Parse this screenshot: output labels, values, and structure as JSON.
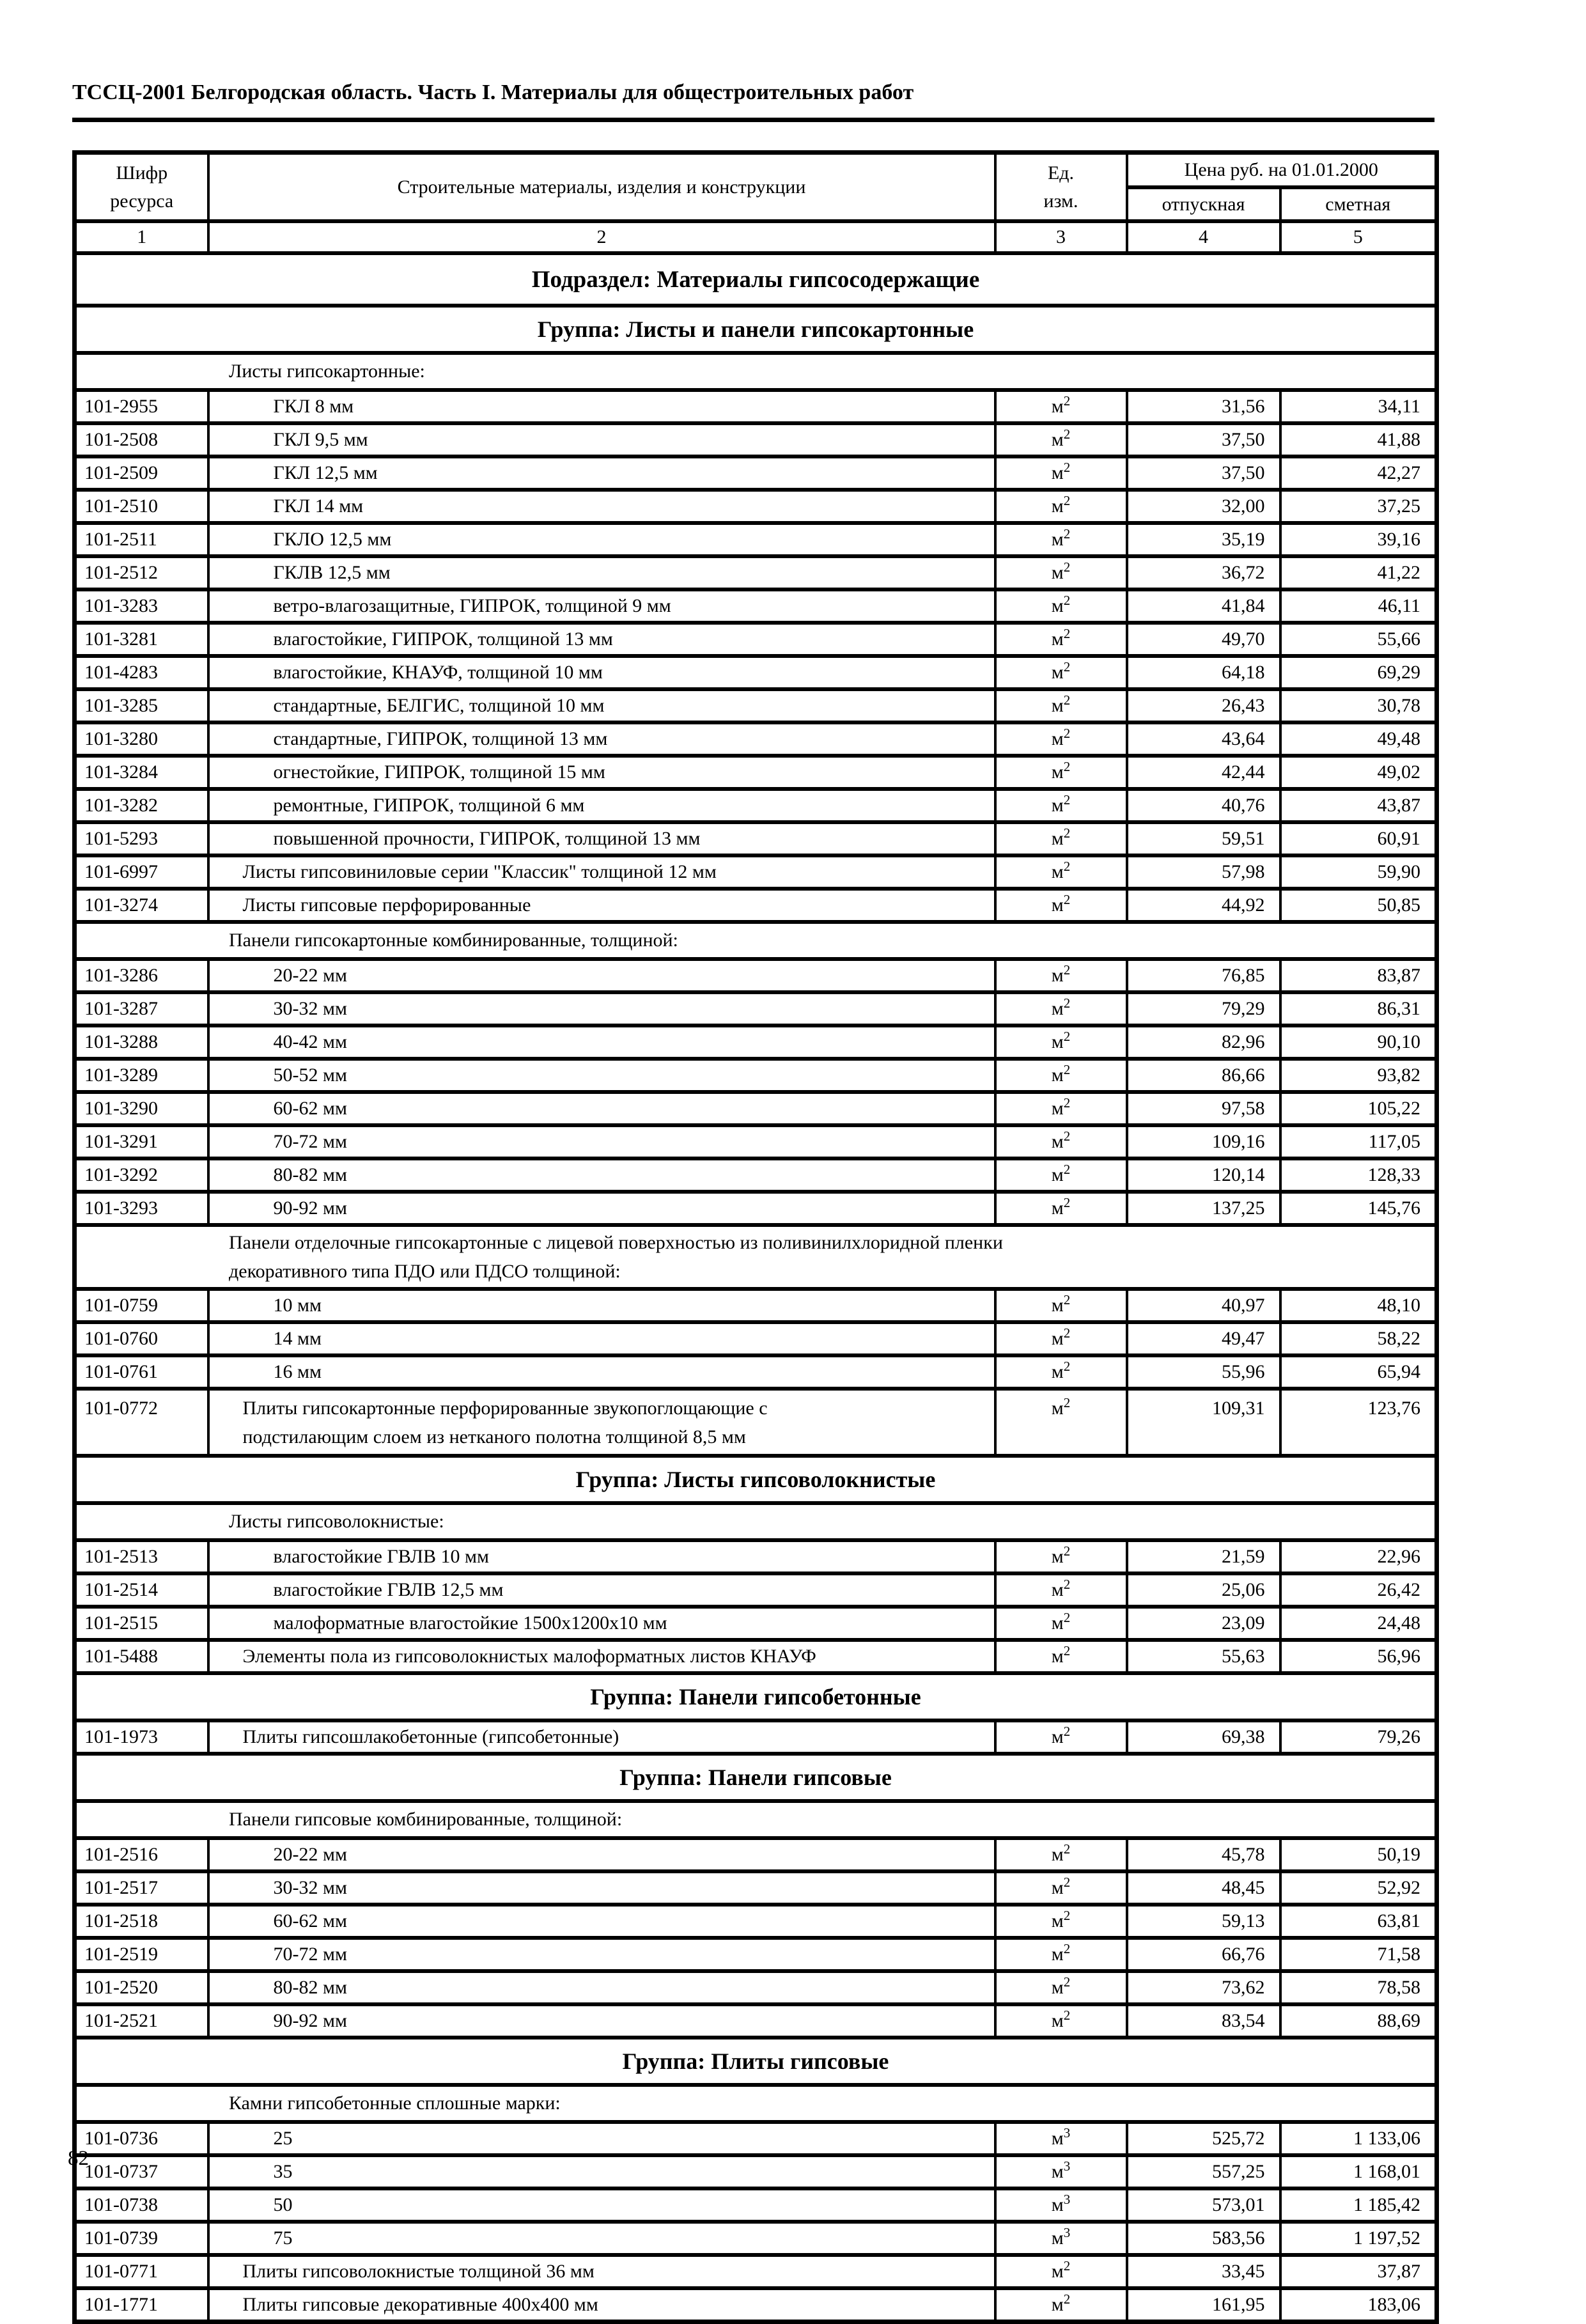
{
  "page": {
    "title": "ТССЦ-2001 Белгородская область. Часть I. Материалы для общестроительных работ",
    "page_number": "82"
  },
  "table": {
    "header": {
      "code": "Шифр\nресурса",
      "materials": "Строительные материалы, изделия и конструкции",
      "unit": "Ед.\nизм.",
      "price_group": "Цена руб. на 01.01.2000",
      "wholesale": "отпускная",
      "estimate": "сметная",
      "numbers": [
        "1",
        "2",
        "3",
        "4",
        "5"
      ]
    },
    "rows": [
      {
        "type": "section",
        "text": "Подраздел: Материалы гипсосодержащие"
      },
      {
        "type": "group",
        "text": "Группа: Листы и панели гипсокартонные"
      },
      {
        "type": "subheader",
        "text": "Листы гипсокартонные:"
      },
      {
        "type": "data",
        "code": "101-2955",
        "name": "ГКЛ 8 мм",
        "indent": 2,
        "unit": "м²",
        "wholesale": "31,56",
        "estimate": "34,11"
      },
      {
        "type": "data",
        "code": "101-2508",
        "name": "ГКЛ 9,5 мм",
        "indent": 2,
        "unit": "м²",
        "wholesale": "37,50",
        "estimate": "41,88"
      },
      {
        "type": "data",
        "code": "101-2509",
        "name": "ГКЛ 12,5 мм",
        "indent": 2,
        "unit": "м²",
        "wholesale": "37,50",
        "estimate": "42,27"
      },
      {
        "type": "data",
        "code": "101-2510",
        "name": "ГКЛ 14 мм",
        "indent": 2,
        "unit": "м²",
        "wholesale": "32,00",
        "estimate": "37,25"
      },
      {
        "type": "data",
        "code": "101-2511",
        "name": "ГКЛО 12,5 мм",
        "indent": 2,
        "unit": "м²",
        "wholesale": "35,19",
        "estimate": "39,16"
      },
      {
        "type": "data",
        "code": "101-2512",
        "name": "ГКЛВ 12,5 мм",
        "indent": 2,
        "unit": "м²",
        "wholesale": "36,72",
        "estimate": "41,22"
      },
      {
        "type": "data",
        "code": "101-3283",
        "name": "ветро-влагозащитные, ГИПРОК, толщиной 9 мм",
        "indent": 2,
        "unit": "м²",
        "wholesale": "41,84",
        "estimate": "46,11"
      },
      {
        "type": "data",
        "code": "101-3281",
        "name": "влагостойкие, ГИПРОК, толщиной 13 мм",
        "indent": 2,
        "unit": "м²",
        "wholesale": "49,70",
        "estimate": "55,66"
      },
      {
        "type": "data",
        "code": "101-4283",
        "name": "влагостойкие, КНАУФ, толщиной 10 мм",
        "indent": 2,
        "unit": "м²",
        "wholesale": "64,18",
        "estimate": "69,29"
      },
      {
        "type": "data",
        "code": "101-3285",
        "name": "стандартные, БЕЛГИС, толщиной 10 мм",
        "indent": 2,
        "unit": "м²",
        "wholesale": "26,43",
        "estimate": "30,78"
      },
      {
        "type": "data",
        "code": "101-3280",
        "name": "стандартные, ГИПРОК, толщиной 13 мм",
        "indent": 2,
        "unit": "м²",
        "wholesale": "43,64",
        "estimate": "49,48"
      },
      {
        "type": "data",
        "code": "101-3284",
        "name": "огнестойкие, ГИПРОК, толщиной 15 мм",
        "indent": 2,
        "unit": "м²",
        "wholesale": "42,44",
        "estimate": "49,02"
      },
      {
        "type": "data",
        "code": "101-3282",
        "name": "ремонтные, ГИПРОК, толщиной 6 мм",
        "indent": 2,
        "unit": "м²",
        "wholesale": "40,76",
        "estimate": "43,87"
      },
      {
        "type": "data",
        "code": "101-5293",
        "name": "повышенной прочности, ГИПРОК, толщиной 13 мм",
        "indent": 2,
        "unit": "м²",
        "wholesale": "59,51",
        "estimate": "60,91"
      },
      {
        "type": "data",
        "code": "101-6997",
        "name": "Листы гипсовиниловые серии \"Классик\" толщиной 12 мм",
        "indent": 1,
        "unit": "м²",
        "wholesale": "57,98",
        "estimate": "59,90"
      },
      {
        "type": "data",
        "code": "101-3274",
        "name": "Листы гипсовые перфорированные",
        "indent": 1,
        "unit": "м²",
        "wholesale": "44,92",
        "estimate": "50,85"
      },
      {
        "type": "subheader",
        "text": "Панели гипсокартонные комбинированные, толщиной:"
      },
      {
        "type": "data",
        "code": "101-3286",
        "name": "20-22 мм",
        "indent": 2,
        "unit": "м²",
        "wholesale": "76,85",
        "estimate": "83,87"
      },
      {
        "type": "data",
        "code": "101-3287",
        "name": "30-32 мм",
        "indent": 2,
        "unit": "м²",
        "wholesale": "79,29",
        "estimate": "86,31"
      },
      {
        "type": "data",
        "code": "101-3288",
        "name": "40-42 мм",
        "indent": 2,
        "unit": "м²",
        "wholesale": "82,96",
        "estimate": "90,10"
      },
      {
        "type": "data",
        "code": "101-3289",
        "name": "50-52 мм",
        "indent": 2,
        "unit": "м²",
        "wholesale": "86,66",
        "estimate": "93,82"
      },
      {
        "type": "data",
        "code": "101-3290",
        "name": "60-62 мм",
        "indent": 2,
        "unit": "м²",
        "wholesale": "97,58",
        "estimate": "105,22"
      },
      {
        "type": "data",
        "code": "101-3291",
        "name": "70-72 мм",
        "indent": 2,
        "unit": "м²",
        "wholesale": "109,16",
        "estimate": "117,05"
      },
      {
        "type": "data",
        "code": "101-3292",
        "name": "80-82 мм",
        "indent": 2,
        "unit": "м²",
        "wholesale": "120,14",
        "estimate": "128,33"
      },
      {
        "type": "data",
        "code": "101-3293",
        "name": "90-92 мм",
        "indent": 2,
        "unit": "м²",
        "wholesale": "137,25",
        "estimate": "145,76"
      },
      {
        "type": "subheader",
        "lines": 2,
        "text": "Панели отделочные гипсокартонные с лицевой поверхностью из поливинилхлоридной пленки\nдекоративного типа ПДО или ПДСО толщиной:"
      },
      {
        "type": "data",
        "code": "101-0759",
        "name": "10 мм",
        "indent": 2,
        "unit": "м²",
        "wholesale": "40,97",
        "estimate": "48,10"
      },
      {
        "type": "data",
        "code": "101-0760",
        "name": "14 мм",
        "indent": 2,
        "unit": "м²",
        "wholesale": "49,47",
        "estimate": "58,22"
      },
      {
        "type": "data",
        "code": "101-0761",
        "name": "16 мм",
        "indent": 2,
        "unit": "м²",
        "wholesale": "55,96",
        "estimate": "65,94"
      },
      {
        "type": "data",
        "lines": 2,
        "code": "101-0772",
        "name": "Плиты гипсокартонные перфорированные звукопоглощающие с\nподстилающим слоем из нетканого полотна толщиной 8,5 мм",
        "indent": 1,
        "unit": "м²",
        "wholesale": "109,31",
        "estimate": "123,76"
      },
      {
        "type": "group",
        "text": "Группа: Листы гипсоволокнистые"
      },
      {
        "type": "subheader",
        "text": "Листы гипсоволокнистые:"
      },
      {
        "type": "data",
        "code": "101-2513",
        "name": "влагостойкие ГВЛВ 10 мм",
        "indent": 2,
        "unit": "м²",
        "wholesale": "21,59",
        "estimate": "22,96"
      },
      {
        "type": "data",
        "code": "101-2514",
        "name": "влагостойкие ГВЛВ 12,5 мм",
        "indent": 2,
        "unit": "м²",
        "wholesale": "25,06",
        "estimate": "26,42"
      },
      {
        "type": "data",
        "code": "101-2515",
        "name": "малоформатные влагостойкие 1500х1200х10 мм",
        "indent": 2,
        "unit": "м²",
        "wholesale": "23,09",
        "estimate": "24,48"
      },
      {
        "type": "data",
        "code": "101-5488",
        "name": "Элементы пола из гипсоволокнистых малоформатных листов КНАУФ",
        "indent": 1,
        "unit": "м²",
        "wholesale": "55,63",
        "estimate": "56,96"
      },
      {
        "type": "group",
        "text": "Группа: Панели гипсобетонные"
      },
      {
        "type": "data",
        "code": "101-1973",
        "name": "Плиты гипсошлакобетонные (гипсобетонные)",
        "indent": 1,
        "unit": "м²",
        "wholesale": "69,38",
        "estimate": "79,26"
      },
      {
        "type": "group",
        "text": "Группа: Панели гипсовые"
      },
      {
        "type": "subheader",
        "text": "Панели гипсовые комбинированные, толщиной:"
      },
      {
        "type": "data",
        "code": "101-2516",
        "name": "20-22 мм",
        "indent": 2,
        "unit": "м²",
        "wholesale": "45,78",
        "estimate": "50,19"
      },
      {
        "type": "data",
        "code": "101-2517",
        "name": "30-32 мм",
        "indent": 2,
        "unit": "м²",
        "wholesale": "48,45",
        "estimate": "52,92"
      },
      {
        "type": "data",
        "code": "101-2518",
        "name": "60-62 мм",
        "indent": 2,
        "unit": "м²",
        "wholesale": "59,13",
        "estimate": "63,81"
      },
      {
        "type": "data",
        "code": "101-2519",
        "name": "70-72 мм",
        "indent": 2,
        "unit": "м²",
        "wholesale": "66,76",
        "estimate": "71,58"
      },
      {
        "type": "data",
        "code": "101-2520",
        "name": "80-82 мм",
        "indent": 2,
        "unit": "м²",
        "wholesale": "73,62",
        "estimate": "78,58"
      },
      {
        "type": "data",
        "code": "101-2521",
        "name": "90-92 мм",
        "indent": 2,
        "unit": "м²",
        "wholesale": "83,54",
        "estimate": "88,69"
      },
      {
        "type": "group",
        "text": "Группа: Плиты гипсовые"
      },
      {
        "type": "subheader",
        "text": "Камни гипсобетонные сплошные марки:"
      },
      {
        "type": "data",
        "code": "101-0736",
        "name": "25",
        "indent": 2,
        "unit": "м³",
        "wholesale": "525,72",
        "estimate": "1 133,06"
      },
      {
        "type": "data",
        "code": "101-0737",
        "name": "35",
        "indent": 2,
        "unit": "м³",
        "wholesale": "557,25",
        "estimate": "1 168,01"
      },
      {
        "type": "data",
        "code": "101-0738",
        "name": "50",
        "indent": 2,
        "unit": "м³",
        "wholesale": "573,01",
        "estimate": "1 185,42"
      },
      {
        "type": "data",
        "code": "101-0739",
        "name": "75",
        "indent": 2,
        "unit": "м³",
        "wholesale": "583,56",
        "estimate": "1 197,52"
      },
      {
        "type": "data",
        "code": "101-0771",
        "name": "Плиты гипсоволокнистые толщиной 36 мм",
        "indent": 1,
        "unit": "м²",
        "wholesale": "33,45",
        "estimate": "37,87"
      },
      {
        "type": "data",
        "code": "101-1771",
        "name": "Плиты гипсовые декоративные 400х400 мм",
        "indent": 1,
        "unit": "м²",
        "wholesale": "161,95",
        "estimate": "183,06"
      }
    ]
  }
}
